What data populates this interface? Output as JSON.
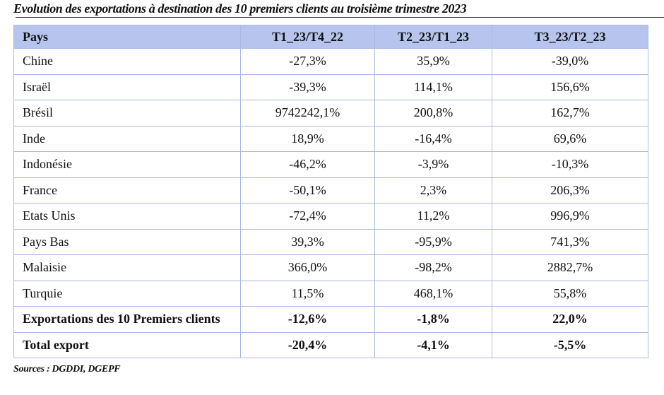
{
  "title": "Evolution des exportations à destination des 10 premiers clients au troisième trimestre 2023",
  "table": {
    "headers": [
      "Pays",
      "T1_23/T4_22",
      "T2_23/T1_23",
      "T3_23/T2_23"
    ],
    "rows": [
      [
        "Chine",
        "-27,3%",
        "35,9%",
        "-39,0%"
      ],
      [
        "Israël",
        "-39,3%",
        "114,1%",
        "156,6%"
      ],
      [
        "Brésil",
        "9742242,1%",
        "200,8%",
        "162,7%"
      ],
      [
        "Inde",
        "18,9%",
        "-16,4%",
        "69,6%"
      ],
      [
        "Indonésie",
        "-46,2%",
        "-3,9%",
        "-10,3%"
      ],
      [
        "France",
        "-50,1%",
        "2,3%",
        "206,3%"
      ],
      [
        "Etats Unis",
        "-72,4%",
        "11,2%",
        "996,9%"
      ],
      [
        "Pays Bas",
        "39,3%",
        "-95,9%",
        "741,3%"
      ],
      [
        "Malaisie",
        "366,0%",
        "-98,2%",
        "2882,7%"
      ],
      [
        "Turquie",
        "11,5%",
        "468,1%",
        "55,8%"
      ]
    ],
    "summary_rows": [
      [
        "Exportations des 10 Premiers clients",
        "-12,6%",
        "-1,8%",
        "22,0%"
      ],
      [
        "Total export",
        "-20,4%",
        "-4,1%",
        "-5,5%"
      ]
    ]
  },
  "source": "Sources : DGDDI, DGEPF",
  "colors": {
    "header_bg": "#b7c5ee",
    "border": "#aab8e3"
  }
}
